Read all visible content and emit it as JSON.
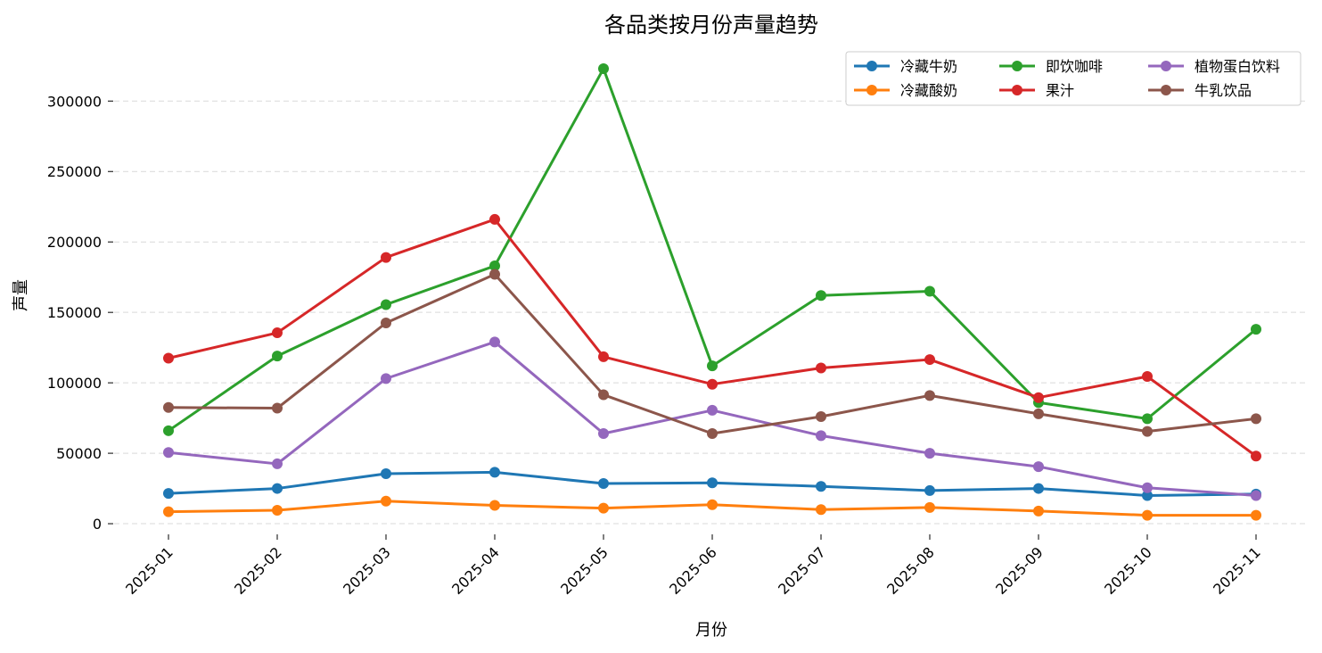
{
  "chart_data": {
    "type": "line",
    "title": "各品类按月份声量趋势",
    "xlabel": "月份",
    "ylabel": "声量",
    "categories": [
      "2025-01",
      "2025-02",
      "2025-03",
      "2025-04",
      "2025-05",
      "2025-06",
      "2025-07",
      "2025-08",
      "2025-09",
      "2025-10",
      "2025-11"
    ],
    "ylim": [
      -12000,
      335000
    ],
    "yticks": [
      0,
      50000,
      100000,
      150000,
      200000,
      250000,
      300000
    ],
    "grid": "y-dashed",
    "legend_position": "top-right",
    "series": [
      {
        "name": "冷藏牛奶",
        "color": "#1f77b4",
        "values": [
          21500,
          25000,
          35500,
          36500,
          28500,
          29000,
          26500,
          23500,
          25000,
          20000,
          21000
        ]
      },
      {
        "name": "冷藏酸奶",
        "color": "#ff7f0e",
        "values": [
          8500,
          9500,
          16000,
          13000,
          11000,
          13500,
          10000,
          11500,
          9000,
          6000,
          6000
        ]
      },
      {
        "name": "即饮咖啡",
        "color": "#2ca02c",
        "values": [
          66000,
          119000,
          155500,
          183000,
          323000,
          112000,
          162000,
          165000,
          86000,
          74500,
          138000
        ]
      },
      {
        "name": "果汁",
        "color": "#d62728",
        "values": [
          117500,
          135500,
          189000,
          216000,
          118500,
          99000,
          110500,
          116500,
          89500,
          104500,
          48000
        ]
      },
      {
        "name": "植物蛋白饮料",
        "color": "#9467bd",
        "values": [
          50500,
          42500,
          103000,
          129000,
          64000,
          80500,
          62500,
          50000,
          40500,
          25500,
          20000
        ]
      },
      {
        "name": "牛乳饮品",
        "color": "#8c564b",
        "values": [
          82500,
          82000,
          142500,
          177000,
          91500,
          64000,
          76000,
          91000,
          78000,
          65500,
          74500
        ]
      }
    ]
  }
}
